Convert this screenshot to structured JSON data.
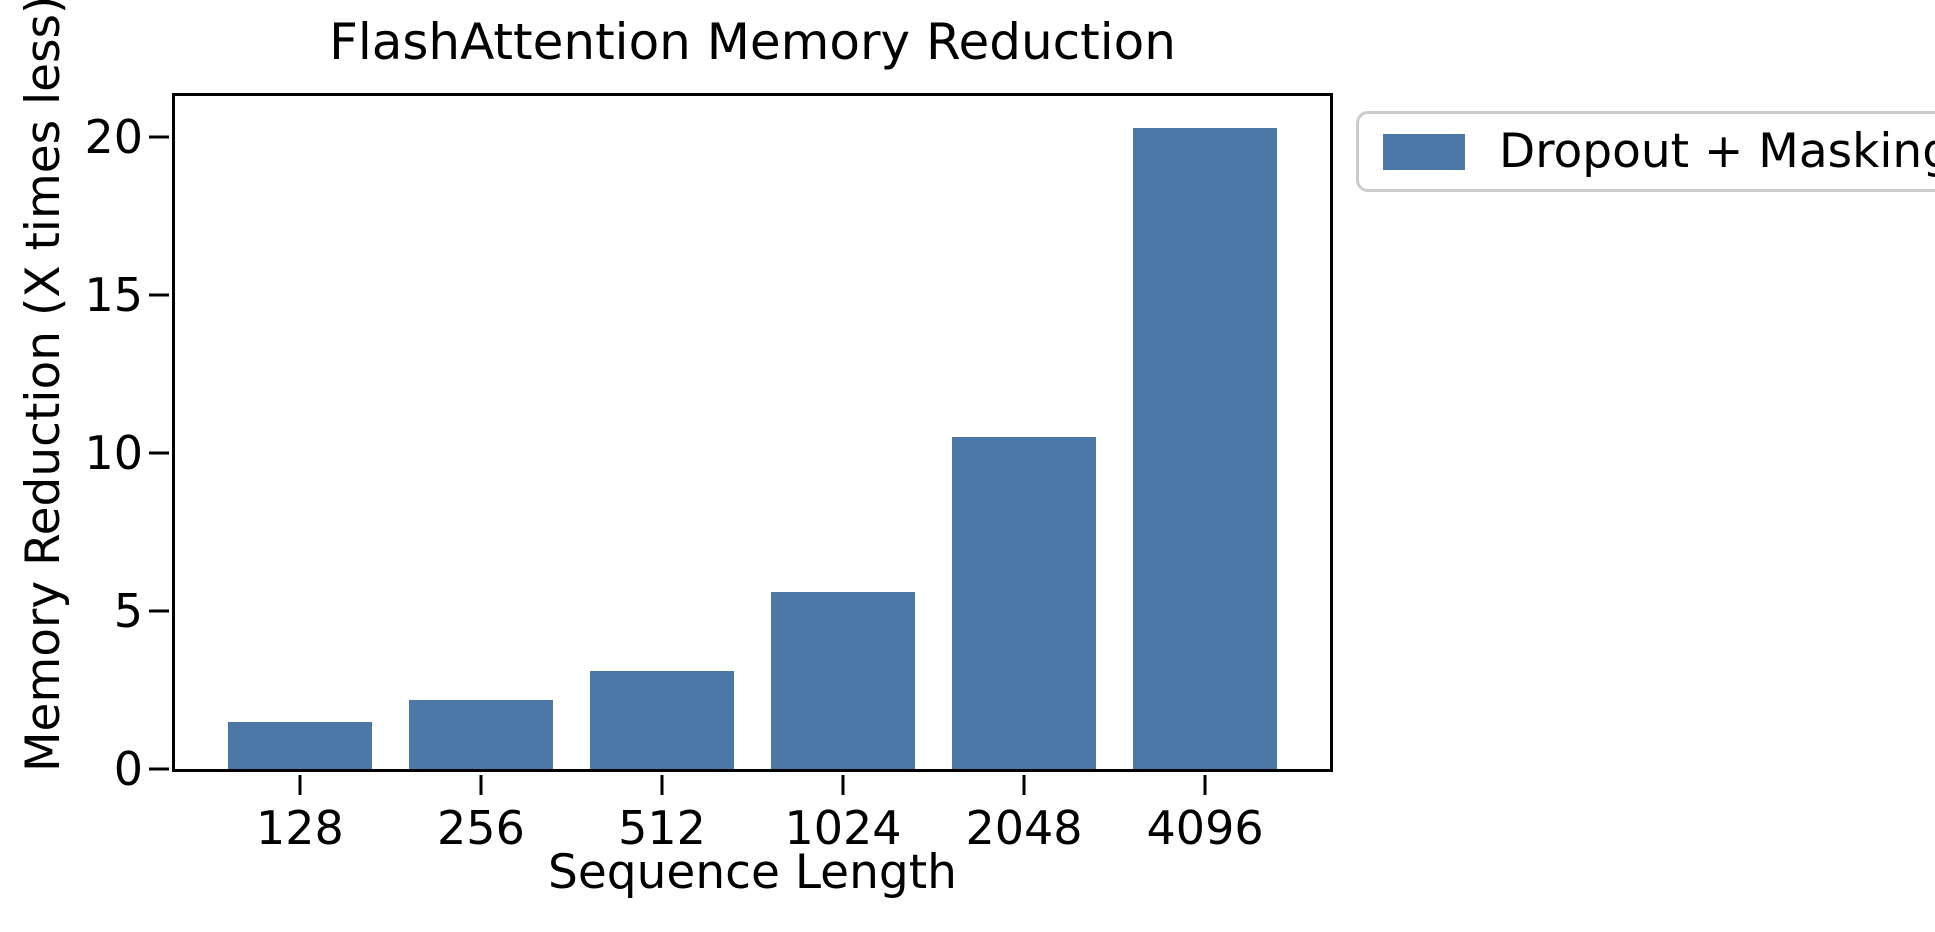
{
  "chart_data": {
    "type": "bar",
    "title": "FlashAttention Memory Reduction",
    "xlabel": "Sequence Length",
    "ylabel": "Memory Reduction (X times less)",
    "categories": [
      "128",
      "256",
      "512",
      "1024",
      "2048",
      "4096"
    ],
    "values": [
      1.5,
      2.2,
      3.1,
      5.6,
      10.5,
      20.3
    ],
    "series_name": "Dropout + Masking",
    "yticks": [
      0,
      5,
      10,
      15,
      20
    ],
    "ylim": [
      0,
      21.3
    ],
    "xlim_units": [
      -0.69,
      5.69
    ],
    "bar_width_units": 0.8,
    "bar_color": "#4C78A8",
    "axis_color": "#000000",
    "legend_border_color": "#cccccc",
    "background_color": "#ffffff",
    "grid": false,
    "legend_position": "outside-top-right"
  }
}
